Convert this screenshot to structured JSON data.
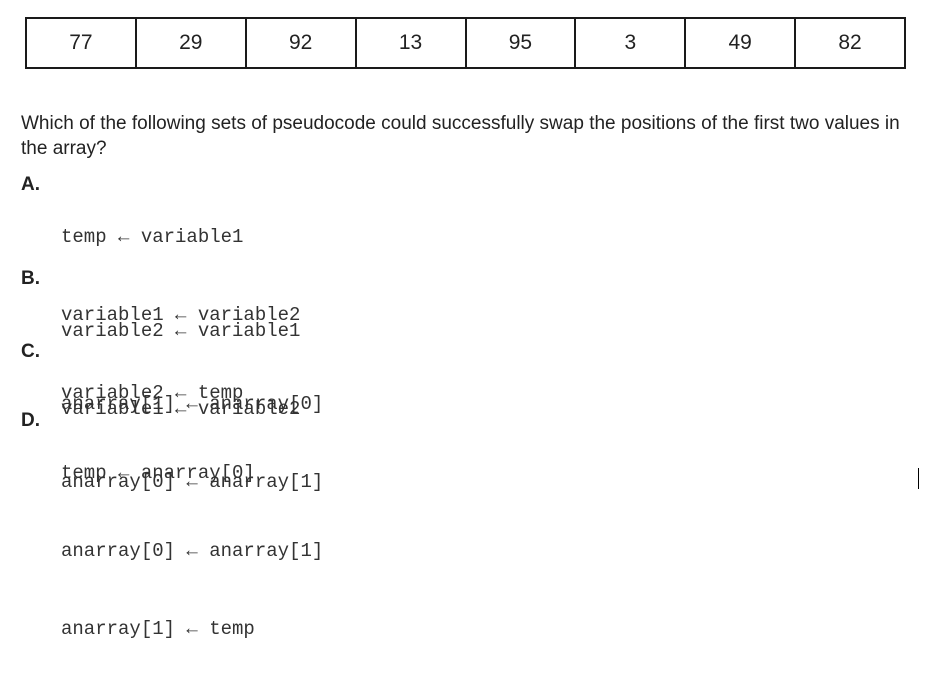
{
  "array": [
    "77",
    "29",
    "92",
    "13",
    "95",
    "3",
    "49",
    "82"
  ],
  "question": "Which of the following sets of pseudocode could successfully swap the positions of the first two values in the array?",
  "options": [
    {
      "letter": "A.",
      "lines": [
        "temp ← variable1",
        "variable1 ← variable2",
        "variable2 ← temp"
      ]
    },
    {
      "letter": "B.",
      "lines": [
        "variable2 ← variable1",
        "variable1 ← variable2"
      ]
    },
    {
      "letter": "C.",
      "lines": [
        "anarray[1] ← anarray[0]",
        "anarray[0] ← anarray[1]"
      ]
    },
    {
      "letter": "D.",
      "lines": [
        "temp ← anarray[0]",
        "anarray[0] ← anarray[1]",
        "anarray[1] ← temp"
      ]
    }
  ]
}
